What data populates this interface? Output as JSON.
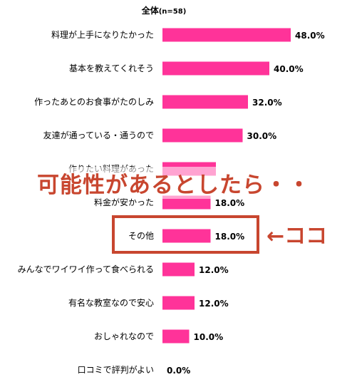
{
  "chart_data": {
    "type": "bar",
    "orientation": "horizontal",
    "title": "全体",
    "title_sample": "(n=58)",
    "categories": [
      "料理が上手になりたかった",
      "基本を教えてくれそう",
      "作ったあとのお食事がたのしみ",
      "友達が通っている・通うので",
      "作りたい料理があった",
      "料金が安かった",
      "その他",
      "みんなでワイワイ作って食べられる",
      "有名な教室なので安心",
      "おしゃれなので",
      "口コミで評判がよい"
    ],
    "values": [
      48.0,
      40.0,
      32.0,
      30.0,
      20.0,
      18.0,
      18.0,
      12.0,
      12.0,
      10.0,
      0.0
    ],
    "value_labels": [
      "48.0%",
      "40.0%",
      "32.0%",
      "30.0%",
      "",
      "18.0%",
      "18.0%",
      "12.0%",
      "12.0%",
      "10.0%",
      "0.0%"
    ],
    "bar_color": "#ff3399",
    "xlim": [
      0,
      100
    ]
  },
  "annotation": {
    "overlay_text": "可能性があるとしたら・・",
    "arrow_note": "←ココ",
    "highlight_color": "#c8462f",
    "highlighted_category": "その他"
  }
}
